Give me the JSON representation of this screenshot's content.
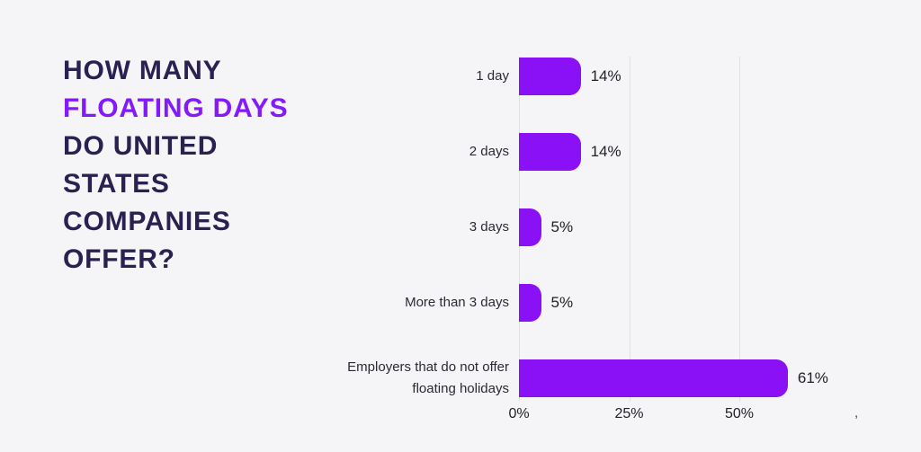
{
  "page": {
    "background_color": "#f5f4f6",
    "title_navy_color": "#2b2150",
    "title_accent_color": "#831af8"
  },
  "title": {
    "full_text": "HOW MANY FLOATING DAYS DO UNITED STATES COMPANIES OFFER?",
    "lines": [
      {
        "text": "HOW MANY",
        "accent": false
      },
      {
        "text": "FLOATING DAYS",
        "accent": true
      },
      {
        "text": "DO UNITED",
        "accent": false
      },
      {
        "text": "STATES",
        "accent": false
      },
      {
        "text": "COMPANIES",
        "accent": false
      },
      {
        "text": "OFFER?",
        "accent": false
      }
    ]
  },
  "chart_data": {
    "type": "bar",
    "orientation": "horizontal",
    "categories": [
      "1 day",
      "2 days",
      "3 days",
      "More than 3 days",
      "Employers that do not offer floating holidays"
    ],
    "values": [
      14,
      14,
      5,
      5,
      61
    ],
    "value_labels": [
      "14%",
      "14%",
      "5%",
      "5%",
      "61%"
    ],
    "x_ticks": [
      "0%",
      "25%",
      "50%"
    ],
    "x_tick_values": [
      0,
      25,
      50
    ],
    "xlim": [
      0,
      75
    ],
    "grid": true,
    "bar_color": "#8a10f5",
    "gridline_color": "#e2e0e4",
    "title": "How many floating days do United States companies offer?",
    "xlabel": "",
    "ylabel": ""
  },
  "annotations": {
    "stray_mark": ","
  }
}
